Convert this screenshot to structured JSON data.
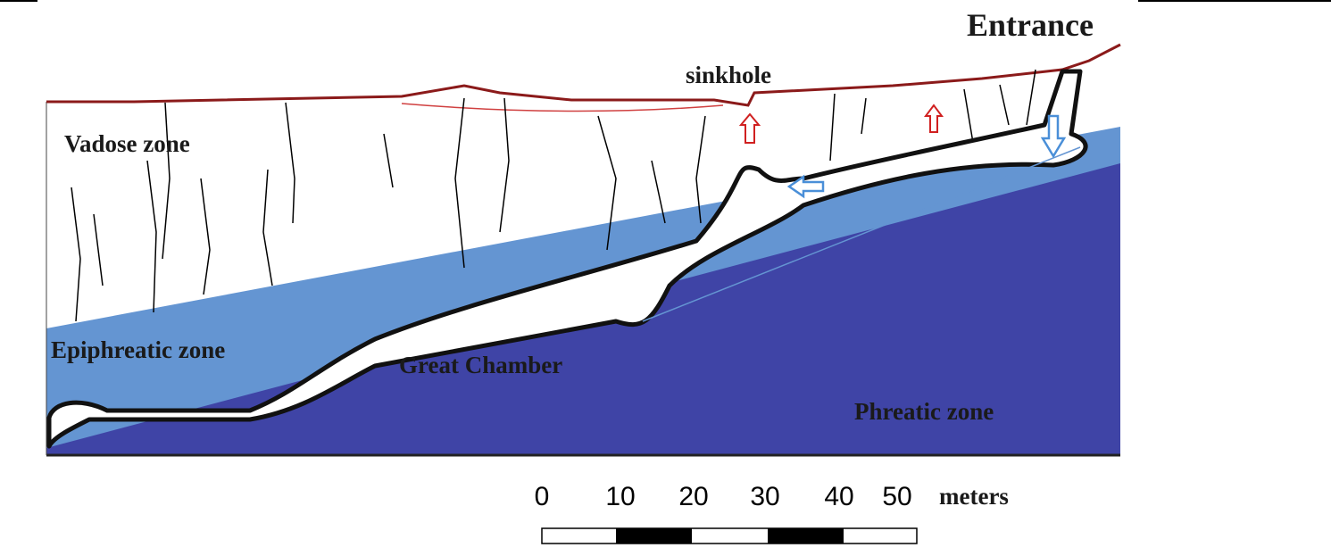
{
  "labels": {
    "entrance": "Entrance",
    "sinkhole": "sinkhole",
    "vadose": "Vadose zone",
    "epiphreatic": "Epiphreatic zone",
    "great_chamber": "Great Chamber",
    "phreatic": "Phreatic zone"
  },
  "scale_bar": {
    "ticks": [
      "0",
      "10",
      "20",
      "30",
      "40",
      "50"
    ],
    "unit": "meters"
  }
}
